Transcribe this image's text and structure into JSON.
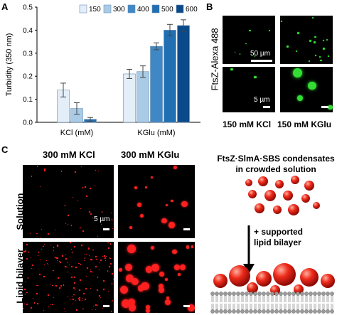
{
  "panels": {
    "a_letter": "A",
    "b_letter": "B",
    "c_letter": "C"
  },
  "chart_data": {
    "type": "bar",
    "categories": [
      "KCl (mM)",
      "KGlu (mM)"
    ],
    "ylabel": "Turbidity (350 nm)",
    "ylim": [
      0,
      0.5
    ],
    "yticks": [
      "0.0",
      "0.1",
      "0.2",
      "0.3",
      "0.4",
      "0.5"
    ],
    "series": [
      {
        "name": "150",
        "color": "#e3eef8",
        "values": [
          0.14,
          0.21
        ],
        "errors": [
          0.03,
          0.02
        ]
      },
      {
        "name": "300",
        "color": "#a9cbe6",
        "values": [
          0.06,
          0.22
        ],
        "errors": [
          0.025,
          0.025
        ]
      },
      {
        "name": "400",
        "color": "#3f88c5",
        "values": [
          null,
          0.33
        ],
        "errors": [
          null,
          0.015
        ]
      },
      {
        "name": "500",
        "color": "#1f6fb2",
        "values": [
          0.013,
          0.4
        ],
        "errors": [
          0.008,
          0.025
        ]
      },
      {
        "name": "600",
        "color": "#0b4a8a",
        "values": [
          null,
          0.42
        ],
        "errors": [
          null,
          0.025
        ]
      }
    ],
    "legend_placement": "top"
  },
  "panel_b": {
    "row_label": "FtsZ-Alexa 488",
    "col1_label": "150 mM KCl",
    "col2_label": "150 mM KGlu",
    "scale_top": "50 µm",
    "scale_bottom": "5 µm",
    "dot_color": "#33dd33"
  },
  "panel_c": {
    "col1_label": "300 mM KCl",
    "col2_label": "300 mM KGlu",
    "row1_label": "Solution",
    "row2_label": "Lipid bilayer",
    "scale_label": "5 µm",
    "dot_color": "#ff2020",
    "schematic_title_1": "FtsZ·SlmA·SBS condensates",
    "schematic_title_2": "in crowded solution",
    "arrow_label_1": "+ supported",
    "arrow_label_2": "lipid bilayer"
  }
}
